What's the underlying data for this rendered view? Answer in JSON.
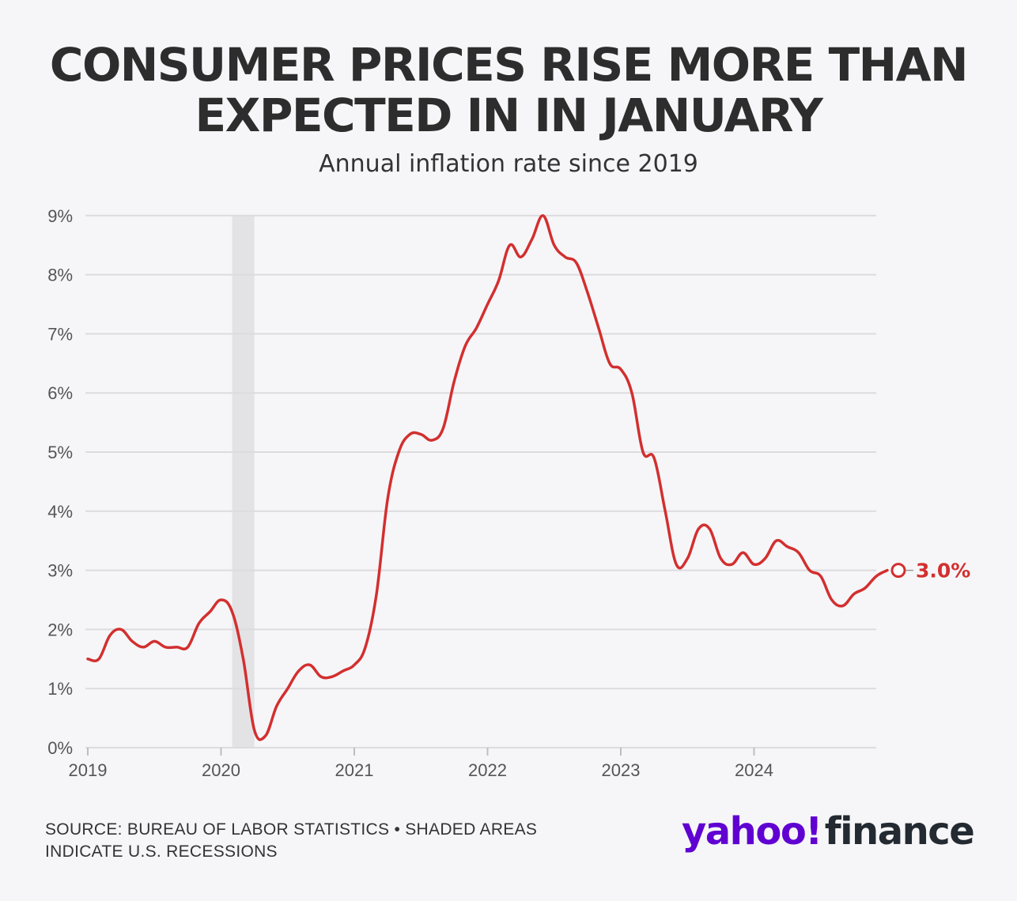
{
  "header": {
    "title": "CONSUMER PRICES RISE MORE THAN EXPECTED IN IN JANUARY",
    "subtitle": "Annual inflation rate since 2019"
  },
  "footer": {
    "source": "SOURCE: BUREAU OF LABOR STATISTICS • SHADED AREAS INDICATE U.S. RECESSIONS",
    "logo_yahoo": "yahoo!",
    "logo_finance": "finance"
  },
  "colors": {
    "line": "#d32f2f",
    "grid": "#dcdcdf",
    "recession": "#e3e3e5",
    "text": "#2d2d2d",
    "brand_purple": "#6001d2"
  },
  "chart_data": {
    "type": "line",
    "title": "CONSUMER PRICES RISE MORE THAN EXPECTED IN IN JANUARY",
    "subtitle": "Annual inflation rate since 2019",
    "xlabel": "",
    "ylabel": "",
    "ylim": [
      0,
      9
    ],
    "yticks": [
      0,
      1,
      2,
      3,
      4,
      5,
      6,
      7,
      8,
      9
    ],
    "ytick_labels": [
      "0%",
      "1%",
      "2%",
      "3%",
      "4%",
      "5%",
      "6%",
      "7%",
      "8%",
      "9%"
    ],
    "xtick_years": [
      2019,
      2020,
      2021,
      2022,
      2023,
      2024
    ],
    "xtick_labels": [
      "2019",
      "2020",
      "2021",
      "2022",
      "2023",
      "2024"
    ],
    "grid": true,
    "recessions": [
      {
        "start": "2020-02",
        "end": "2020-04"
      }
    ],
    "series": [
      {
        "values": [
          [
            "2019-01",
            1.5
          ],
          [
            "2019-02",
            1.5
          ],
          [
            "2019-03",
            1.9
          ],
          [
            "2019-04",
            2.0
          ],
          [
            "2019-05",
            1.8
          ],
          [
            "2019-06",
            1.7
          ],
          [
            "2019-07",
            1.8
          ],
          [
            "2019-08",
            1.7
          ],
          [
            "2019-09",
            1.7
          ],
          [
            "2019-10",
            1.7
          ],
          [
            "2019-11",
            2.1
          ],
          [
            "2019-12",
            2.3
          ],
          [
            "2020-01",
            2.5
          ],
          [
            "2020-02",
            2.3
          ],
          [
            "2020-03",
            1.5
          ],
          [
            "2020-04",
            0.3
          ],
          [
            "2020-05",
            0.2
          ],
          [
            "2020-06",
            0.7
          ],
          [
            "2020-07",
            1.0
          ],
          [
            "2020-08",
            1.3
          ],
          [
            "2020-09",
            1.4
          ],
          [
            "2020-10",
            1.2
          ],
          [
            "2020-11",
            1.2
          ],
          [
            "2020-12",
            1.3
          ],
          [
            "2021-01",
            1.4
          ],
          [
            "2021-02",
            1.7
          ],
          [
            "2021-03",
            2.6
          ],
          [
            "2021-04",
            4.2
          ],
          [
            "2021-05",
            5.0
          ],
          [
            "2021-06",
            5.3
          ],
          [
            "2021-07",
            5.3
          ],
          [
            "2021-08",
            5.2
          ],
          [
            "2021-09",
            5.4
          ],
          [
            "2021-10",
            6.2
          ],
          [
            "2021-11",
            6.8
          ],
          [
            "2021-12",
            7.1
          ],
          [
            "2022-01",
            7.5
          ],
          [
            "2022-02",
            7.9
          ],
          [
            "2022-03",
            8.5
          ],
          [
            "2022-04",
            8.3
          ],
          [
            "2022-05",
            8.6
          ],
          [
            "2022-06",
            9.0
          ],
          [
            "2022-07",
            8.5
          ],
          [
            "2022-08",
            8.3
          ],
          [
            "2022-09",
            8.2
          ],
          [
            "2022-10",
            7.7
          ],
          [
            "2022-11",
            7.1
          ],
          [
            "2022-12",
            6.5
          ],
          [
            "2023-01",
            6.4
          ],
          [
            "2023-02",
            6.0
          ],
          [
            "2023-03",
            5.0
          ],
          [
            "2023-04",
            4.9
          ],
          [
            "2023-05",
            4.0
          ],
          [
            "2023-06",
            3.1
          ],
          [
            "2023-07",
            3.2
          ],
          [
            "2023-08",
            3.7
          ],
          [
            "2023-09",
            3.7
          ],
          [
            "2023-10",
            3.2
          ],
          [
            "2023-11",
            3.1
          ],
          [
            "2023-12",
            3.3
          ],
          [
            "2024-01",
            3.1
          ],
          [
            "2024-02",
            3.2
          ],
          [
            "2024-03",
            3.5
          ],
          [
            "2024-04",
            3.4
          ],
          [
            "2024-05",
            3.3
          ],
          [
            "2024-06",
            3.0
          ],
          [
            "2024-07",
            2.9
          ],
          [
            "2024-08",
            2.5
          ],
          [
            "2024-09",
            2.4
          ],
          [
            "2024-10",
            2.6
          ],
          [
            "2024-11",
            2.7
          ],
          [
            "2024-12",
            2.9
          ],
          [
            "2025-01",
            3.0
          ]
        ],
        "color": "#d32f2f"
      }
    ],
    "end_label": "3.0%"
  }
}
